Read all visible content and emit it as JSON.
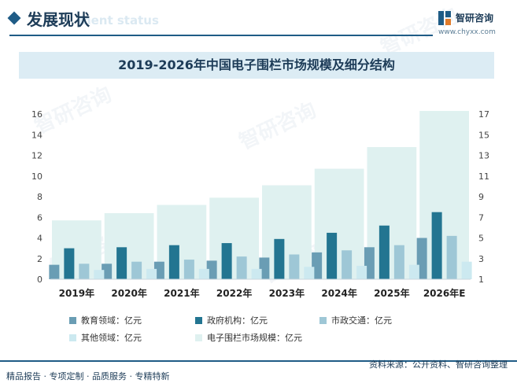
{
  "header": {
    "title": "发展现状",
    "subtitle_en": "ment status",
    "brand": "智研咨询",
    "url": "www.chyxx.com"
  },
  "watermark_text": "智研咨询",
  "chart_data": {
    "type": "bar",
    "title": "2019-2026年中国电子围栏市场规模及细分结构",
    "categories": [
      "2019年",
      "2020年",
      "2021年",
      "2022年",
      "2023年",
      "2024年",
      "2025年",
      "2026年E"
    ],
    "left_axis": {
      "ylim": [
        0,
        16
      ],
      "ticks": [
        0,
        2,
        4,
        6,
        8,
        10,
        12,
        14,
        16
      ]
    },
    "right_axis": {
      "ylim": [
        1,
        17
      ],
      "ticks": [
        1,
        3,
        5,
        7,
        9,
        11,
        13,
        15,
        17
      ]
    },
    "background_series": {
      "name": "电子围栏市场规模：亿元",
      "axis": "right",
      "color": "#dff1f0",
      "values": [
        6.7,
        7.4,
        8.2,
        8.9,
        10.1,
        11.7,
        13.8,
        17.3
      ]
    },
    "series": [
      {
        "name": "教育领域：亿元",
        "axis": "left",
        "color": "#6a9db4",
        "values": [
          1.4,
          1.5,
          1.7,
          1.8,
          2.1,
          2.6,
          3.1,
          4.0
        ]
      },
      {
        "name": "政府机构：亿元",
        "axis": "left",
        "color": "#237591",
        "values": [
          3.0,
          3.1,
          3.3,
          3.5,
          3.9,
          4.5,
          5.2,
          6.5
        ]
      },
      {
        "name": "市政交通：亿元",
        "axis": "left",
        "color": "#9ec7d6",
        "values": [
          1.5,
          1.7,
          1.9,
          2.2,
          2.4,
          2.8,
          3.3,
          4.2
        ]
      },
      {
        "name": "其他领域：亿元",
        "axis": "left",
        "color": "#cce9f0",
        "values": [
          0.9,
          1.0,
          1.0,
          1.0,
          1.2,
          1.3,
          1.4,
          1.7
        ]
      }
    ],
    "legend": "bottom"
  },
  "footer": {
    "left": "精品报告 · 专项定制 · 品质服务 · 专精特新",
    "right": "资料来源：公开资料、智研咨询整理"
  }
}
